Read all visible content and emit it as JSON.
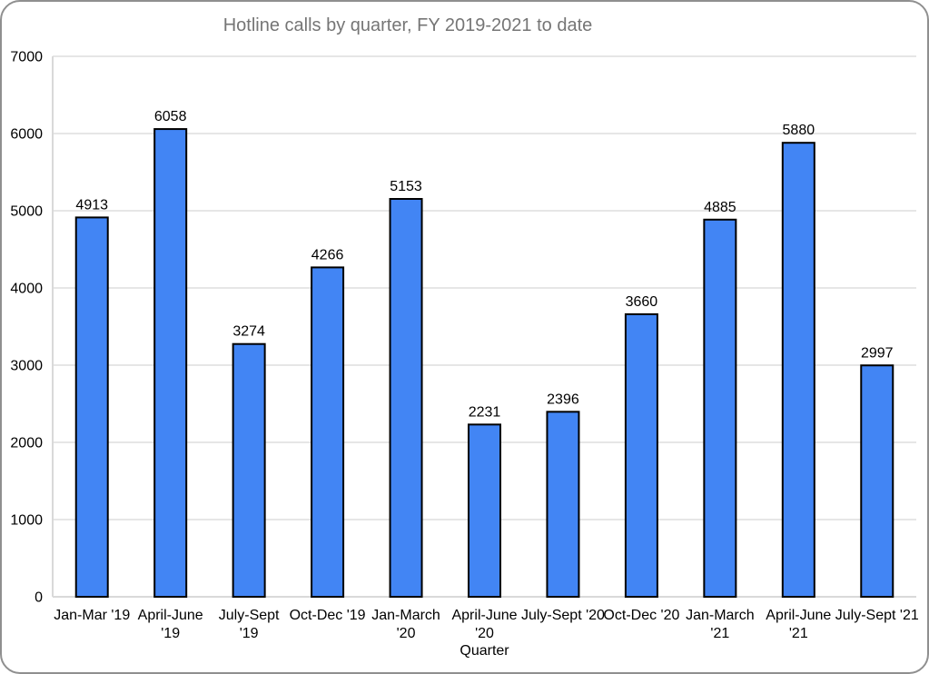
{
  "window": {
    "background": "#ffffff",
    "frame_border_color": "#8f8f8f"
  },
  "chart_data": {
    "type": "bar",
    "title": "Hotline calls by quarter, FY 2019-2021 to date",
    "categories": [
      "Jan-Mar '19",
      "April-June '19",
      "July-Sept '19",
      "Oct-Dec '19",
      "Jan-March '20",
      "April-June '20",
      "July-Sept '20",
      "Oct-Dec '20",
      "Jan-March '21",
      "April-June '21",
      "July-Sept '21"
    ],
    "category_display_lines": [
      [
        "Jan-Mar '19"
      ],
      [
        "April-June",
        "'19"
      ],
      [
        "July-Sept",
        "'19"
      ],
      [
        "Oct-Dec '19"
      ],
      [
        "Jan-March",
        "'20"
      ],
      [
        "April-June",
        "'20"
      ],
      [
        "July-Sept '20"
      ],
      [
        "Oct-Dec '20"
      ],
      [
        "Jan-March",
        "'21"
      ],
      [
        "April-June",
        "'21"
      ],
      [
        "July-Sept '21"
      ]
    ],
    "values": [
      4913,
      6058,
      3274,
      4266,
      5153,
      2231,
      2396,
      3660,
      4885,
      5880,
      2997
    ],
    "xlabel": "Quarter",
    "ylabel": "",
    "ylim": [
      0,
      7000
    ],
    "yticks": [
      0,
      1000,
      2000,
      3000,
      4000,
      5000,
      6000,
      7000
    ],
    "grid": true,
    "legend": "none",
    "colors": {
      "bar_fill": "#4285f4",
      "bar_border": "#000000",
      "gridline": "#e6e6e6",
      "axis_line": "#d9d9d9",
      "title": "#757575",
      "labels": "#000000"
    }
  }
}
